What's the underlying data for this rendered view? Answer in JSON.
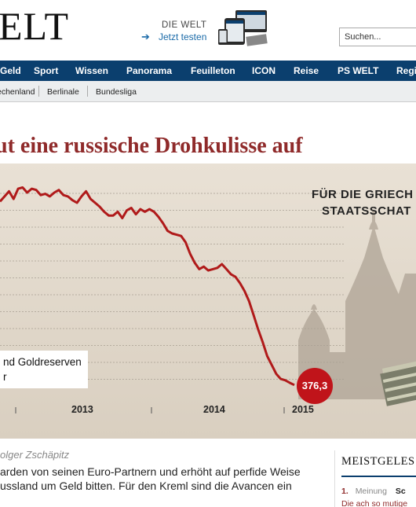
{
  "header": {
    "logo": "ELT",
    "promo_brand": "DIE WELT",
    "promo_cta": "Jetzt testen",
    "search_placeholder": "Suchen..."
  },
  "nav": {
    "items": [
      "Geld",
      "Sport",
      "Wissen",
      "Panorama",
      "Feuilleton",
      "ICON",
      "Reise",
      "PS WELT",
      "Regio"
    ]
  },
  "subnav": {
    "items": [
      "Griechenland",
      "Berlinale",
      "Bundesliga"
    ]
  },
  "article": {
    "headline": "ut eine russische Drohkulisse auf",
    "author": "olger Zschäpitz",
    "body_line1": "arden von seinen Euro-Partnern und erhöht auf perfide Weise",
    "body_line2": "ussland um Geld bitten. Für den Kreml sind die Avancen ein"
  },
  "illustration": {
    "title_line1": "FÜR DIE GRIECH",
    "title_line2": "STAATSSCHAT"
  },
  "chart_data": {
    "type": "line",
    "legend_line1": "nd Goldreserven",
    "legend_line2": "r",
    "x_ticks": [
      "2013",
      "2014",
      "2015"
    ],
    "last_value_label": "376,3",
    "series": [
      {
        "color": "#b01a1a",
        "values": [
          520,
          524,
          528,
          522,
          530,
          531,
          527,
          530,
          529,
          525,
          526,
          524,
          527,
          529,
          525,
          524,
          521,
          519,
          524,
          528,
          522,
          519,
          516,
          512,
          509,
          509,
          512,
          507,
          513,
          515,
          510,
          514,
          512,
          514,
          512,
          508,
          503,
          497,
          495,
          494,
          493,
          488,
          479,
          472,
          467,
          469,
          466,
          467,
          468,
          471,
          467,
          463,
          461,
          456,
          450,
          442,
          431,
          420,
          410,
          399,
          392,
          385,
          381,
          380,
          378,
          376.3
        ]
      }
    ],
    "ylim": [
      370,
      535
    ],
    "grid": true
  },
  "sidebar": {
    "title": "MEISTGELES",
    "row_num": "1.",
    "row_cat": "Meinung",
    "row_tab2": "Sc",
    "teaser": "Die ach so mutige"
  },
  "colors": {
    "nav_bg": "#0b3f6e",
    "headline": "#8f2a2a",
    "chart_line": "#b01a1a",
    "badge": "#c0141a"
  }
}
